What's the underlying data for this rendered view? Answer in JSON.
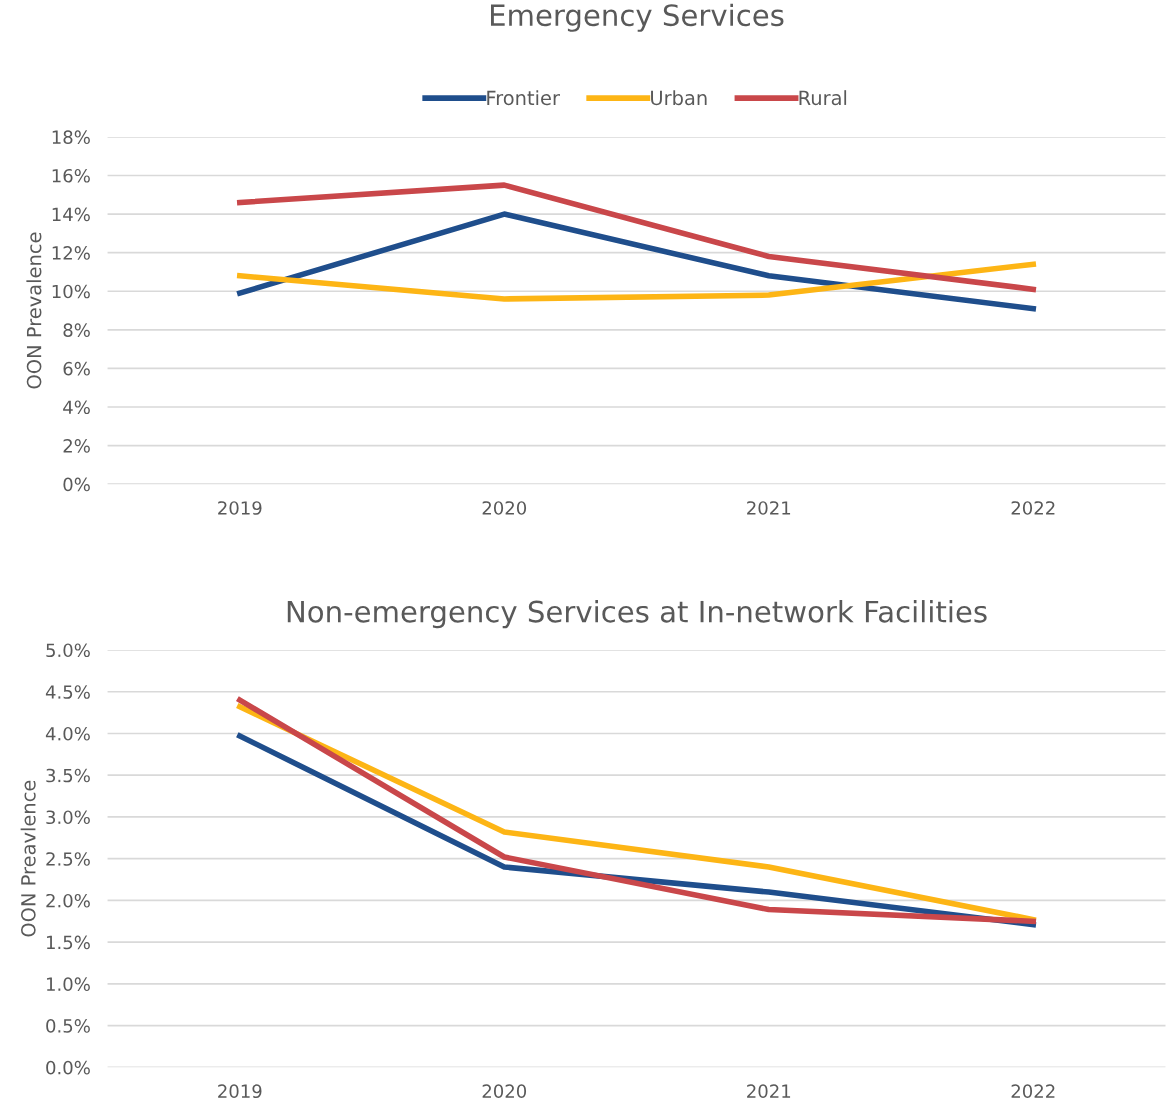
{
  "chart_data": [
    {
      "type": "line",
      "title": "Emergency Services",
      "ylabel": "OON Prevalence",
      "categories": [
        "2019",
        "2020",
        "2021",
        "2022"
      ],
      "series": [
        {
          "name": "Frontier",
          "color": "#1f4e8c",
          "values": [
            9.9,
            14.0,
            10.8,
            9.1
          ]
        },
        {
          "name": "Urban",
          "color": "#fdb515",
          "values": [
            10.8,
            9.6,
            9.8,
            11.4
          ]
        },
        {
          "name": "Rural",
          "color": "#c9474a",
          "values": [
            14.6,
            15.5,
            11.8,
            10.1
          ]
        }
      ],
      "ylim": [
        0,
        18
      ],
      "yticks": [
        {
          "value": 0,
          "label": "0%"
        },
        {
          "value": 2,
          "label": "2%"
        },
        {
          "value": 4,
          "label": "4%"
        },
        {
          "value": 6,
          "label": "6%"
        },
        {
          "value": 8,
          "label": "8%"
        },
        {
          "value": 10,
          "label": "10%"
        },
        {
          "value": 12,
          "label": "12%"
        },
        {
          "value": 14,
          "label": "14%"
        },
        {
          "value": 16,
          "label": "16%"
        },
        {
          "value": 18,
          "label": "18%"
        }
      ],
      "grid": "y",
      "legend": "top",
      "marker": "none",
      "line_style": "solid"
    },
    {
      "type": "line",
      "title": "Non-emergency Services at In-network Facilities",
      "ylabel": "OON Preavlence",
      "categories": [
        "2019",
        "2020",
        "2021",
        "2022"
      ],
      "series": [
        {
          "color": "#1f4e8c",
          "values": [
            3.97,
            2.4,
            2.1,
            1.71
          ]
        },
        {
          "color": "#fdb515",
          "values": [
            4.32,
            2.82,
            2.4,
            1.77
          ]
        },
        {
          "color": "#c9474a",
          "values": [
            4.4,
            2.52,
            1.89,
            1.75
          ]
        }
      ],
      "ylim": [
        0,
        5
      ],
      "yticks": [
        {
          "value": 0,
          "label": "0.0%"
        },
        {
          "value": 0.5,
          "label": "0.5%"
        },
        {
          "value": 1,
          "label": "1.0%"
        },
        {
          "value": 1.5,
          "label": "1.5%"
        },
        {
          "value": 2,
          "label": "2.0%"
        },
        {
          "value": 2.5,
          "label": "2.5%"
        },
        {
          "value": 3,
          "label": "3.0%"
        },
        {
          "value": 3.5,
          "label": "3.5%"
        },
        {
          "value": 4,
          "label": "4.0%"
        },
        {
          "value": 4.5,
          "label": "4.5%"
        },
        {
          "value": 5,
          "label": "5.0%"
        }
      ],
      "grid": "y",
      "marker": "none",
      "line_style": "solid"
    }
  ]
}
